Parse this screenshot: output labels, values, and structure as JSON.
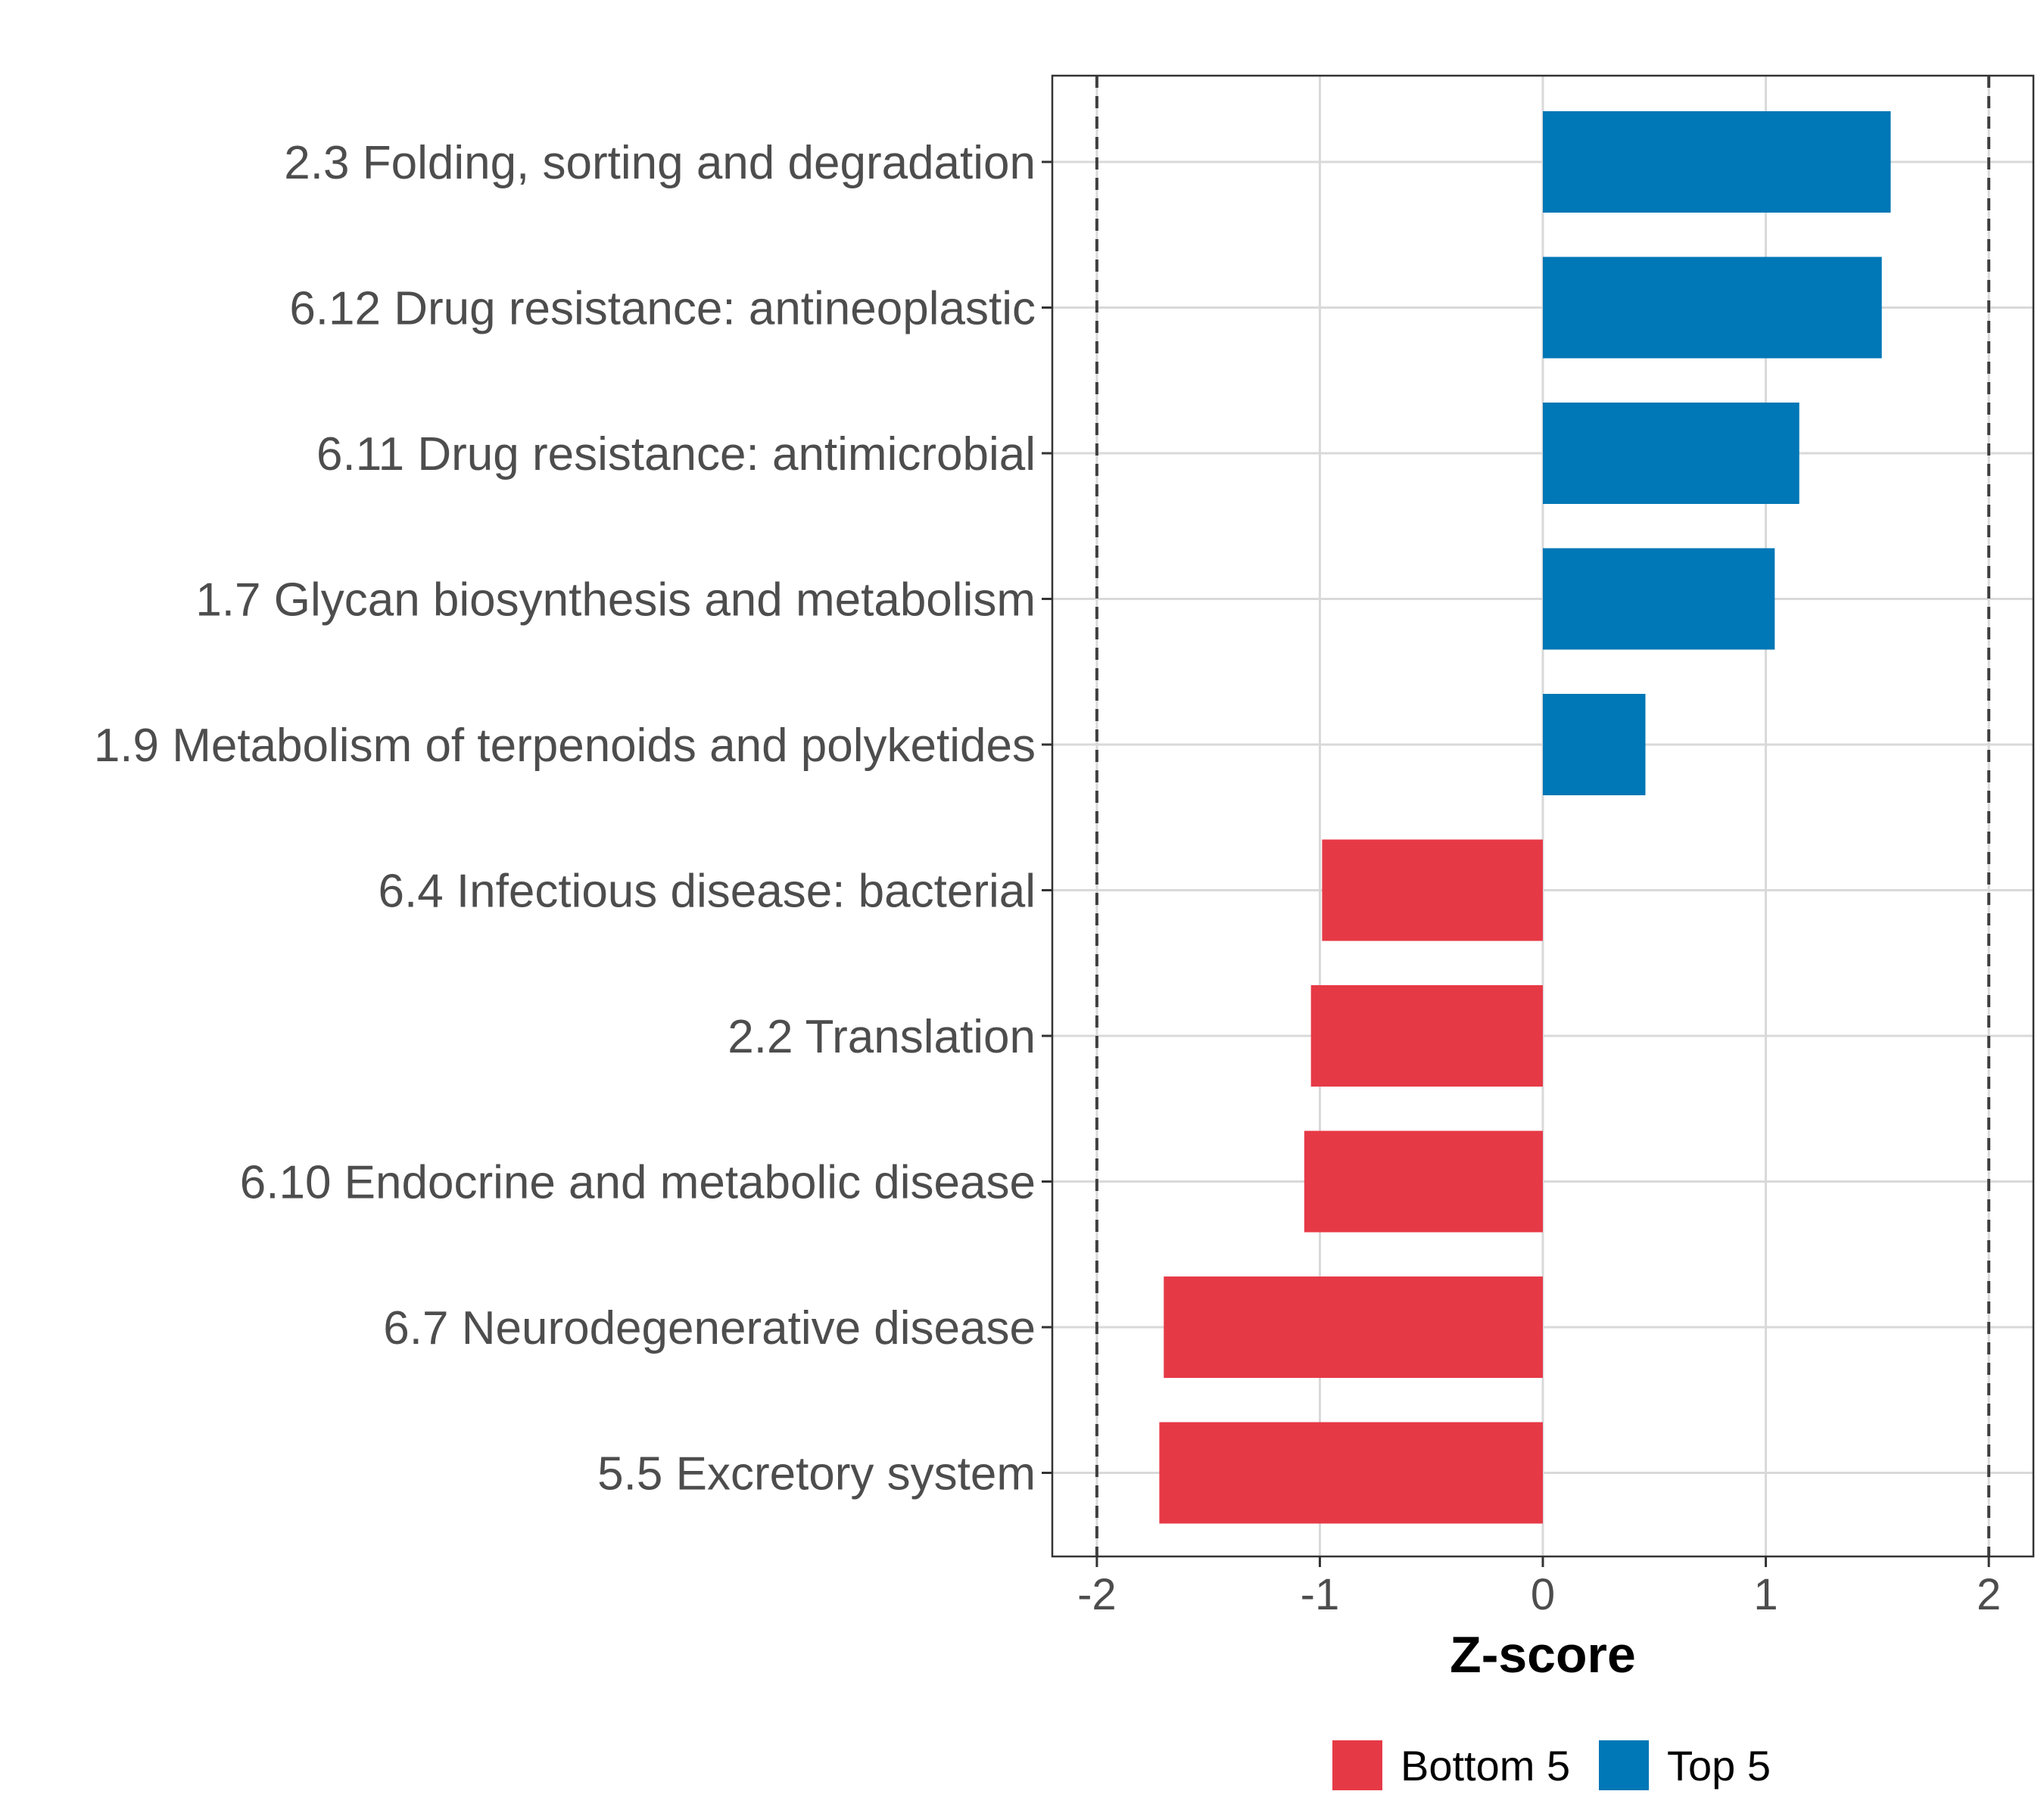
{
  "chart_data": {
    "type": "bar",
    "orientation": "horizontal",
    "categories": [
      "2.3 Folding, sorting and degradation",
      "6.12 Drug resistance: antineoplastic",
      "6.11 Drug resistance: antimicrobial",
      "1.7 Glycan biosynthesis and metabolism",
      "1.9 Metabolism of terpenoids and polyketides",
      "6.4 Infectious disease: bacterial",
      "2.2 Translation",
      "6.10 Endocrine and metabolic disease",
      "6.7 Neurodegenerative disease",
      "5.5 Excretory system"
    ],
    "values": [
      1.56,
      1.52,
      1.15,
      1.04,
      0.46,
      -0.99,
      -1.04,
      -1.07,
      -1.7,
      -1.72
    ],
    "groups": [
      "Top 5",
      "Top 5",
      "Top 5",
      "Top 5",
      "Top 5",
      "Bottom 5",
      "Bottom 5",
      "Bottom 5",
      "Bottom 5",
      "Bottom 5"
    ],
    "xlabel": "Z-score",
    "ylabel": "",
    "xlim": [
      -2.2,
      2.2
    ],
    "xticks": [
      -2,
      -1,
      0,
      1,
      2
    ],
    "xtick_labels": [
      "-2",
      "-1",
      "0",
      "1",
      "2"
    ],
    "reference_lines": [
      -2,
      2
    ],
    "grid": true,
    "legend": {
      "position": "bottom",
      "entries": [
        {
          "label": "Bottom 5",
          "color": "#E63946"
        },
        {
          "label": "Top 5",
          "color": "#0077B6"
        }
      ]
    },
    "colors": {
      "Bottom 5": "#E63946",
      "Top 5": "#0077B6"
    }
  }
}
